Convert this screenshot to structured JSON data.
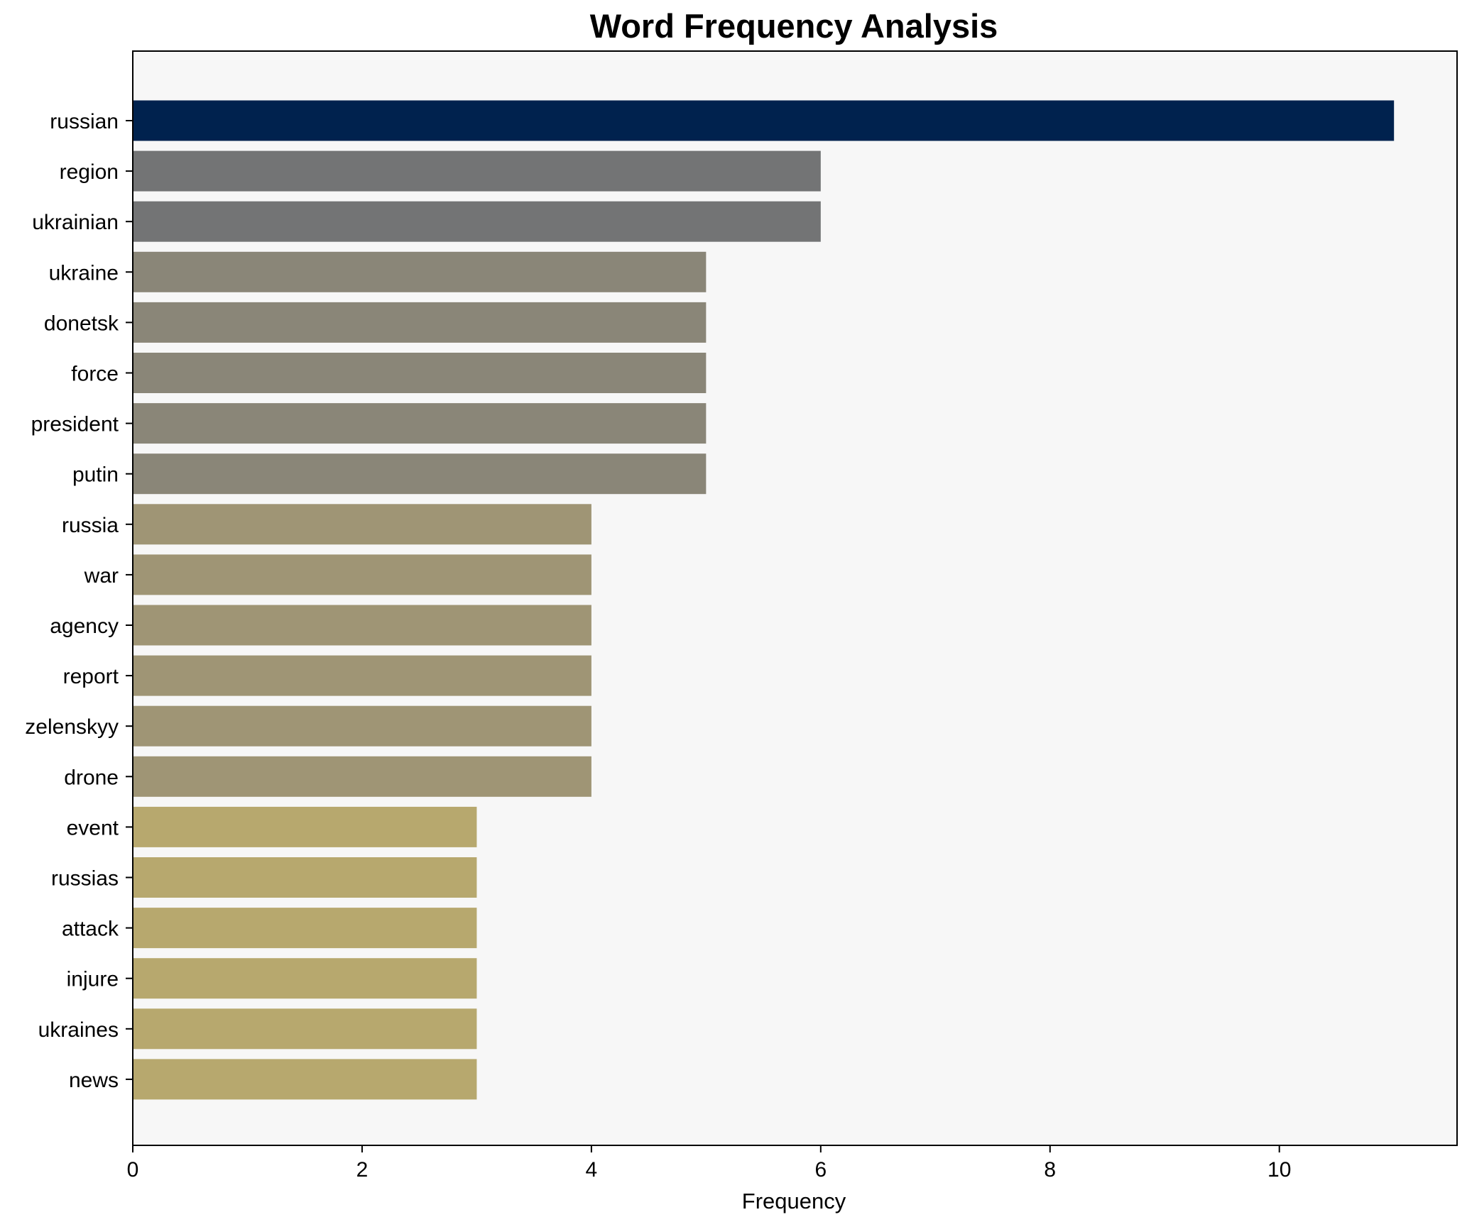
{
  "chart_data": {
    "type": "bar",
    "orientation": "horizontal",
    "title": "Word Frequency Analysis",
    "xlabel": "Frequency",
    "ylabel": "",
    "xlim": [
      0,
      11.55
    ],
    "x_ticks": [
      0,
      2,
      4,
      6,
      8,
      10
    ],
    "grid": false,
    "legend": "none",
    "background_color": "#f7f7f7",
    "categories": [
      "russian",
      "region",
      "ukrainian",
      "ukraine",
      "donetsk",
      "force",
      "president",
      "putin",
      "russia",
      "war",
      "agency",
      "report",
      "zelenskyy",
      "drone",
      "event",
      "russias",
      "attack",
      "injure",
      "ukraines",
      "news"
    ],
    "values": [
      11,
      6,
      6,
      5,
      5,
      5,
      5,
      5,
      4,
      4,
      4,
      4,
      4,
      4,
      3,
      3,
      3,
      3,
      3,
      3
    ],
    "bar_colors": [
      "#00224e",
      "#737475",
      "#737475",
      "#8a8678",
      "#8a8678",
      "#8a8678",
      "#8a8678",
      "#8a8678",
      "#9f9575",
      "#9f9575",
      "#9f9575",
      "#9f9575",
      "#9f9575",
      "#9f9575",
      "#b7a86e",
      "#b7a86e",
      "#b7a86e",
      "#b7a86e",
      "#b7a86e",
      "#b7a86e"
    ]
  }
}
